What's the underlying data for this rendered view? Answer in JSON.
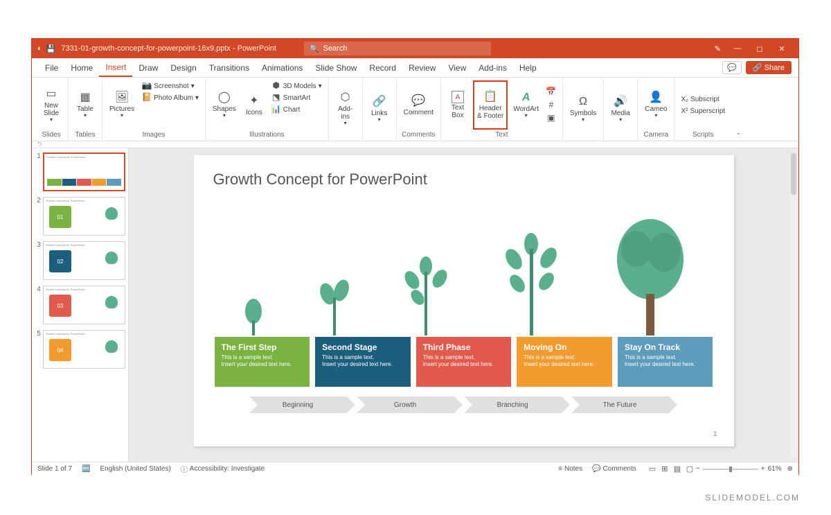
{
  "titlebar": {
    "filename": "7331-01-growth-concept-for-powerpoint-16x9.pptx  -  PowerPoint",
    "search_placeholder": "Search"
  },
  "menu": {
    "items": [
      "File",
      "Home",
      "Insert",
      "Draw",
      "Design",
      "Transitions",
      "Animations",
      "Slide Show",
      "Record",
      "Review",
      "View",
      "Add-ins",
      "Help"
    ],
    "active_index": 2,
    "share": "Share"
  },
  "ribbon": {
    "groups": {
      "slides": {
        "label": "Slides",
        "new_slide": "New\nSlide"
      },
      "tables": {
        "label": "Tables",
        "table": "Table"
      },
      "images": {
        "label": "Images",
        "pictures": "Pictures",
        "screenshot": "Screenshot",
        "photo_album": "Photo Album"
      },
      "illustrations": {
        "label": "Illustrations",
        "shapes": "Shapes",
        "icons": "Icons",
        "models": "3D Models",
        "smartart": "SmartArt",
        "chart": "Chart"
      },
      "addins": {
        "label": "",
        "addins": "Add-\nins"
      },
      "links": {
        "label": "",
        "links": "Links"
      },
      "comments": {
        "label": "Comments",
        "comment": "Comment"
      },
      "text": {
        "label": "Text",
        "textbox": "Text\nBox",
        "header_footer": "Header\n& Footer",
        "wordart": "WordArt"
      },
      "symbols": {
        "label": "",
        "symbols": "Symbols"
      },
      "media": {
        "label": "",
        "media": "Media"
      },
      "camera": {
        "label": "Camera",
        "cameo": "Cameo"
      },
      "scripts": {
        "label": "Scripts",
        "sub": "Subscript",
        "sup": "Superscript"
      }
    }
  },
  "thumbs": [
    1,
    2,
    3,
    4,
    5
  ],
  "slide": {
    "title": "Growth Concept for PowerPoint",
    "sample": "This is a sample text.\nInsert your desired text here.",
    "page": "1",
    "boxes": [
      {
        "title": "The First Step",
        "color": "#7bb342"
      },
      {
        "title": "Second Stage",
        "color": "#1b5e7d"
      },
      {
        "title": "Third Phase",
        "color": "#e15a4b"
      },
      {
        "title": "Moving On",
        "color": "#f29b2e"
      },
      {
        "title": "Stay On Track",
        "color": "#5d9dbb"
      }
    ],
    "arrows": [
      "Beginning",
      "Growth",
      "Branching",
      "The Future"
    ]
  },
  "colors": {
    "plant": "#5aaf8c",
    "plant_dark": "#3f8f6f",
    "trunk": "#7d5a3c"
  },
  "status": {
    "slide": "Slide 1 of 7",
    "lang": "English (United States)",
    "access": "Accessibility: Investigate",
    "notes": "Notes",
    "comments": "Comments",
    "zoom": "61%"
  },
  "watermark": "SLIDEMODEL.COM"
}
